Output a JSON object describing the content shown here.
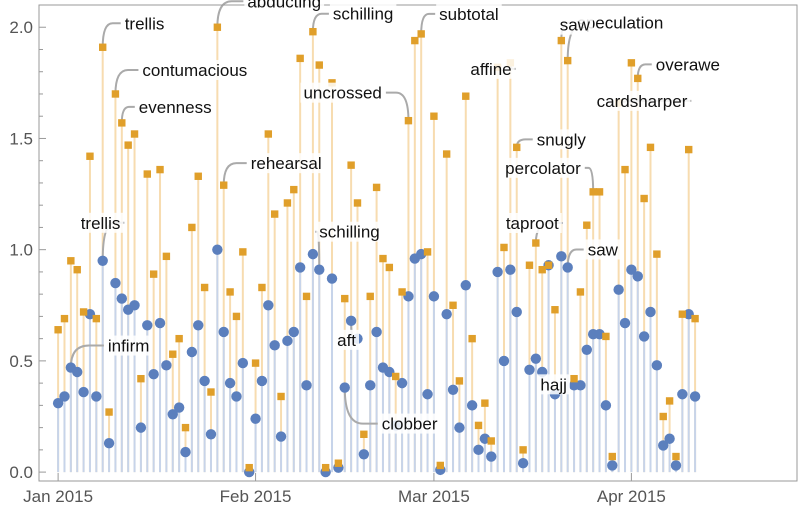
{
  "chart_data": {
    "type": "scatter",
    "x_axis_type": "date",
    "xlim": [
      "2014-12-29",
      "2015-04-27"
    ],
    "ylim": [
      -0.04,
      2.1
    ],
    "grid": false,
    "legend": "none",
    "x_ticks": [
      {
        "date": "2015-01-01",
        "label": "Jan 2015"
      },
      {
        "date": "2015-02-01",
        "label": "Feb 2015"
      },
      {
        "date": "2015-03-01",
        "label": "Mar 2015"
      },
      {
        "date": "2015-04-01",
        "label": "Apr 2015"
      }
    ],
    "y_ticks": [
      {
        "value": 0.0,
        "label": "0.0"
      },
      {
        "value": 0.5,
        "label": "0.5"
      },
      {
        "value": 1.0,
        "label": "1.0"
      },
      {
        "value": 1.5,
        "label": "1.5"
      },
      {
        "value": 2.0,
        "label": "2.0"
      }
    ],
    "colors": {
      "series_a": "#5b7fbd",
      "series_a_stem": "#c7d4ea",
      "series_b": "#e09f2a",
      "series_b_stem": "#f7dcb0",
      "axis": "#999999",
      "callout_line": "#aaaaaa"
    },
    "series": [
      {
        "marker": "circle",
        "points": [
          [
            "2015-01-01",
            0.31
          ],
          [
            "2015-01-02",
            0.34
          ],
          [
            "2015-01-03",
            0.47
          ],
          [
            "2015-01-04",
            0.45
          ],
          [
            "2015-01-05",
            0.36
          ],
          [
            "2015-01-06",
            0.71
          ],
          [
            "2015-01-07",
            0.34
          ],
          [
            "2015-01-08",
            0.95
          ],
          [
            "2015-01-09",
            0.13
          ],
          [
            "2015-01-10",
            0.85
          ],
          [
            "2015-01-11",
            0.78
          ],
          [
            "2015-01-12",
            0.73
          ],
          [
            "2015-01-13",
            0.75
          ],
          [
            "2015-01-14",
            0.2
          ],
          [
            "2015-01-15",
            0.66
          ],
          [
            "2015-01-16",
            0.44
          ],
          [
            "2015-01-17",
            0.67
          ],
          [
            "2015-01-18",
            0.48
          ],
          [
            "2015-01-19",
            0.26
          ],
          [
            "2015-01-20",
            0.29
          ],
          [
            "2015-01-21",
            0.09
          ],
          [
            "2015-01-22",
            0.54
          ],
          [
            "2015-01-23",
            0.66
          ],
          [
            "2015-01-24",
            0.41
          ],
          [
            "2015-01-25",
            0.17
          ],
          [
            "2015-01-26",
            1.0
          ],
          [
            "2015-01-27",
            0.63
          ],
          [
            "2015-01-28",
            0.4
          ],
          [
            "2015-01-29",
            0.34
          ],
          [
            "2015-01-30",
            0.49
          ],
          [
            "2015-01-31",
            0.0
          ],
          [
            "2015-02-01",
            0.24
          ],
          [
            "2015-02-02",
            0.41
          ],
          [
            "2015-02-03",
            0.75
          ],
          [
            "2015-02-04",
            0.57
          ],
          [
            "2015-02-05",
            0.16
          ],
          [
            "2015-02-06",
            0.59
          ],
          [
            "2015-02-07",
            0.63
          ],
          [
            "2015-02-08",
            0.92
          ],
          [
            "2015-02-09",
            0.39
          ],
          [
            "2015-02-10",
            0.98
          ],
          [
            "2015-02-11",
            0.91
          ],
          [
            "2015-02-12",
            0.0
          ],
          [
            "2015-02-13",
            0.87
          ],
          [
            "2015-02-14",
            0.02
          ],
          [
            "2015-02-15",
            0.38
          ],
          [
            "2015-02-16",
            0.68
          ],
          [
            "2015-02-17",
            0.6
          ],
          [
            "2015-02-18",
            0.08
          ],
          [
            "2015-02-19",
            0.39
          ],
          [
            "2015-02-20",
            0.63
          ],
          [
            "2015-02-21",
            0.47
          ],
          [
            "2015-02-22",
            0.45
          ],
          [
            "2015-02-23",
            0.21
          ],
          [
            "2015-02-24",
            0.4
          ],
          [
            "2015-02-25",
            0.79
          ],
          [
            "2015-02-26",
            0.96
          ],
          [
            "2015-02-27",
            0.98
          ],
          [
            "2015-02-28",
            0.35
          ],
          [
            "2015-03-01",
            0.79
          ],
          [
            "2015-03-02",
            0.01
          ],
          [
            "2015-03-03",
            0.71
          ],
          [
            "2015-03-04",
            0.37
          ],
          [
            "2015-03-05",
            0.2
          ],
          [
            "2015-03-06",
            0.84
          ],
          [
            "2015-03-07",
            0.3
          ],
          [
            "2015-03-08",
            0.1
          ],
          [
            "2015-03-09",
            0.15
          ],
          [
            "2015-03-10",
            0.07
          ],
          [
            "2015-03-11",
            0.9
          ],
          [
            "2015-03-12",
            0.5
          ],
          [
            "2015-03-13",
            0.91
          ],
          [
            "2015-03-14",
            0.72
          ],
          [
            "2015-03-15",
            0.04
          ],
          [
            "2015-03-16",
            0.46
          ],
          [
            "2015-03-17",
            0.51
          ],
          [
            "2015-03-18",
            0.45
          ],
          [
            "2015-03-19",
            0.93
          ],
          [
            "2015-03-20",
            0.35
          ],
          [
            "2015-03-21",
            0.97
          ],
          [
            "2015-03-22",
            0.92
          ],
          [
            "2015-03-23",
            0.39
          ],
          [
            "2015-03-24",
            0.39
          ],
          [
            "2015-03-25",
            0.55
          ],
          [
            "2015-03-26",
            0.62
          ],
          [
            "2015-03-27",
            0.62
          ],
          [
            "2015-03-28",
            0.3
          ],
          [
            "2015-03-29",
            0.03
          ],
          [
            "2015-03-30",
            0.82
          ],
          [
            "2015-03-31",
            0.67
          ],
          [
            "2015-04-01",
            0.91
          ],
          [
            "2015-04-02",
            0.88
          ],
          [
            "2015-04-03",
            0.61
          ],
          [
            "2015-04-04",
            0.72
          ],
          [
            "2015-04-05",
            0.48
          ],
          [
            "2015-04-06",
            0.12
          ],
          [
            "2015-04-07",
            0.15
          ],
          [
            "2015-04-08",
            0.03
          ],
          [
            "2015-04-09",
            0.35
          ],
          [
            "2015-04-10",
            0.71
          ],
          [
            "2015-04-11",
            0.34
          ]
        ]
      },
      {
        "marker": "square",
        "points": [
          [
            "2015-01-01",
            0.64
          ],
          [
            "2015-01-02",
            0.69
          ],
          [
            "2015-01-03",
            0.95
          ],
          [
            "2015-01-04",
            0.91
          ],
          [
            "2015-01-05",
            0.72
          ],
          [
            "2015-01-06",
            1.42
          ],
          [
            "2015-01-07",
            0.69
          ],
          [
            "2015-01-08",
            1.91
          ],
          [
            "2015-01-09",
            0.27
          ],
          [
            "2015-01-10",
            1.7
          ],
          [
            "2015-01-11",
            1.57
          ],
          [
            "2015-01-12",
            1.47
          ],
          [
            "2015-01-13",
            1.52
          ],
          [
            "2015-01-14",
            0.42
          ],
          [
            "2015-01-15",
            1.34
          ],
          [
            "2015-01-16",
            0.89
          ],
          [
            "2015-01-17",
            1.36
          ],
          [
            "2015-01-18",
            0.97
          ],
          [
            "2015-01-19",
            0.53
          ],
          [
            "2015-01-20",
            0.6
          ],
          [
            "2015-01-21",
            0.2
          ],
          [
            "2015-01-22",
            1.1
          ],
          [
            "2015-01-23",
            1.33
          ],
          [
            "2015-01-24",
            0.83
          ],
          [
            "2015-01-25",
            0.36
          ],
          [
            "2015-01-26",
            2.0
          ],
          [
            "2015-01-27",
            1.29
          ],
          [
            "2015-01-28",
            0.81
          ],
          [
            "2015-01-29",
            0.7
          ],
          [
            "2015-01-30",
            0.99
          ],
          [
            "2015-01-31",
            0.02
          ],
          [
            "2015-02-01",
            0.49
          ],
          [
            "2015-02-02",
            0.83
          ],
          [
            "2015-02-03",
            1.52
          ],
          [
            "2015-02-04",
            1.16
          ],
          [
            "2015-02-05",
            0.34
          ],
          [
            "2015-02-06",
            1.21
          ],
          [
            "2015-02-07",
            1.27
          ],
          [
            "2015-02-08",
            1.86
          ],
          [
            "2015-02-09",
            0.79
          ],
          [
            "2015-02-10",
            1.98
          ],
          [
            "2015-02-11",
            1.83
          ],
          [
            "2015-02-12",
            0.02
          ],
          [
            "2015-02-13",
            1.75
          ],
          [
            "2015-02-14",
            0.04
          ],
          [
            "2015-02-15",
            0.78
          ],
          [
            "2015-02-16",
            1.38
          ],
          [
            "2015-02-17",
            1.21
          ],
          [
            "2015-02-18",
            0.17
          ],
          [
            "2015-02-19",
            0.79
          ],
          [
            "2015-02-20",
            1.28
          ],
          [
            "2015-02-21",
            0.96
          ],
          [
            "2015-02-22",
            0.92
          ],
          [
            "2015-02-23",
            0.43
          ],
          [
            "2015-02-24",
            0.81
          ],
          [
            "2015-02-25",
            1.58
          ],
          [
            "2015-02-26",
            1.94
          ],
          [
            "2015-02-27",
            1.97
          ],
          [
            "2015-02-28",
            0.99
          ],
          [
            "2015-03-01",
            1.6
          ],
          [
            "2015-03-02",
            0.03
          ],
          [
            "2015-03-03",
            1.43
          ],
          [
            "2015-03-04",
            0.75
          ],
          [
            "2015-03-05",
            0.41
          ],
          [
            "2015-03-06",
            1.69
          ],
          [
            "2015-03-07",
            0.6
          ],
          [
            "2015-03-08",
            0.21
          ],
          [
            "2015-03-09",
            0.31
          ],
          [
            "2015-03-10",
            0.14
          ],
          [
            "2015-03-11",
            1.82
          ],
          [
            "2015-03-12",
            1.01
          ],
          [
            "2015-03-13",
            1.84
          ],
          [
            "2015-03-14",
            1.46
          ],
          [
            "2015-03-15",
            0.1
          ],
          [
            "2015-03-16",
            0.93
          ],
          [
            "2015-03-17",
            1.03
          ],
          [
            "2015-03-18",
            0.91
          ],
          [
            "2015-03-19",
            0.93
          ],
          [
            "2015-03-20",
            0.73
          ],
          [
            "2015-03-21",
            1.94
          ],
          [
            "2015-03-22",
            1.85
          ],
          [
            "2015-03-23",
            0.42
          ],
          [
            "2015-03-24",
            0.81
          ],
          [
            "2015-03-25",
            1.11
          ],
          [
            "2015-03-26",
            1.26
          ],
          [
            "2015-03-27",
            1.26
          ],
          [
            "2015-03-28",
            0.61
          ],
          [
            "2015-03-29",
            0.07
          ],
          [
            "2015-03-30",
            1.66
          ],
          [
            "2015-03-31",
            1.36
          ],
          [
            "2015-04-01",
            1.84
          ],
          [
            "2015-04-02",
            1.77
          ],
          [
            "2015-04-03",
            1.23
          ],
          [
            "2015-04-04",
            1.46
          ],
          [
            "2015-04-05",
            0.98
          ],
          [
            "2015-04-06",
            0.25
          ],
          [
            "2015-04-07",
            0.32
          ],
          [
            "2015-04-08",
            0.07
          ],
          [
            "2015-04-09",
            0.71
          ],
          [
            "2015-04-10",
            1.45
          ],
          [
            "2015-04-11",
            0.69
          ]
        ]
      }
    ],
    "annotations": [
      {
        "text": "trellis",
        "series": 1,
        "date": "2015-01-08"
      },
      {
        "text": "abducting",
        "series": 1,
        "date": "2015-01-26"
      },
      {
        "text": "schilling",
        "series": 1,
        "date": "2015-02-10"
      },
      {
        "text": "subtotal",
        "series": 1,
        "date": "2015-02-27"
      },
      {
        "text": "affine",
        "series": 1,
        "date": "2015-03-13"
      },
      {
        "text": "speculation",
        "series": 1,
        "date": "2015-03-21"
      },
      {
        "text": "overawe",
        "series": 1,
        "date": "2015-04-02"
      },
      {
        "text": "contumacious",
        "series": 1,
        "date": "2015-01-10"
      },
      {
        "text": "evenness",
        "series": 1,
        "date": "2015-01-11"
      },
      {
        "text": "uncrossed",
        "series": 1,
        "date": "2015-02-25"
      },
      {
        "text": "saw",
        "series": 1,
        "date": "2015-03-22"
      },
      {
        "text": "snugly",
        "series": 1,
        "date": "2015-03-14"
      },
      {
        "text": "cardsharper",
        "series": 1,
        "date": "2015-03-30"
      },
      {
        "text": "rehearsal",
        "series": 1,
        "date": "2015-01-27"
      },
      {
        "text": "percolator",
        "series": 1,
        "date": "2015-03-26"
      },
      {
        "text": "taproot",
        "series": 1,
        "date": "2015-03-17"
      },
      {
        "text": "trellis",
        "series": 0,
        "date": "2015-01-08"
      },
      {
        "text": "schilling",
        "series": 0,
        "date": "2015-02-11"
      },
      {
        "text": "saw",
        "series": 0,
        "date": "2015-03-22"
      },
      {
        "text": "infirm",
        "series": 0,
        "date": "2015-01-03"
      },
      {
        "text": "aft",
        "series": 0,
        "date": "2015-02-16"
      },
      {
        "text": "clobber",
        "series": 0,
        "date": "2015-02-15"
      },
      {
        "text": "hajj",
        "series": 0,
        "date": "2015-03-24"
      }
    ]
  }
}
